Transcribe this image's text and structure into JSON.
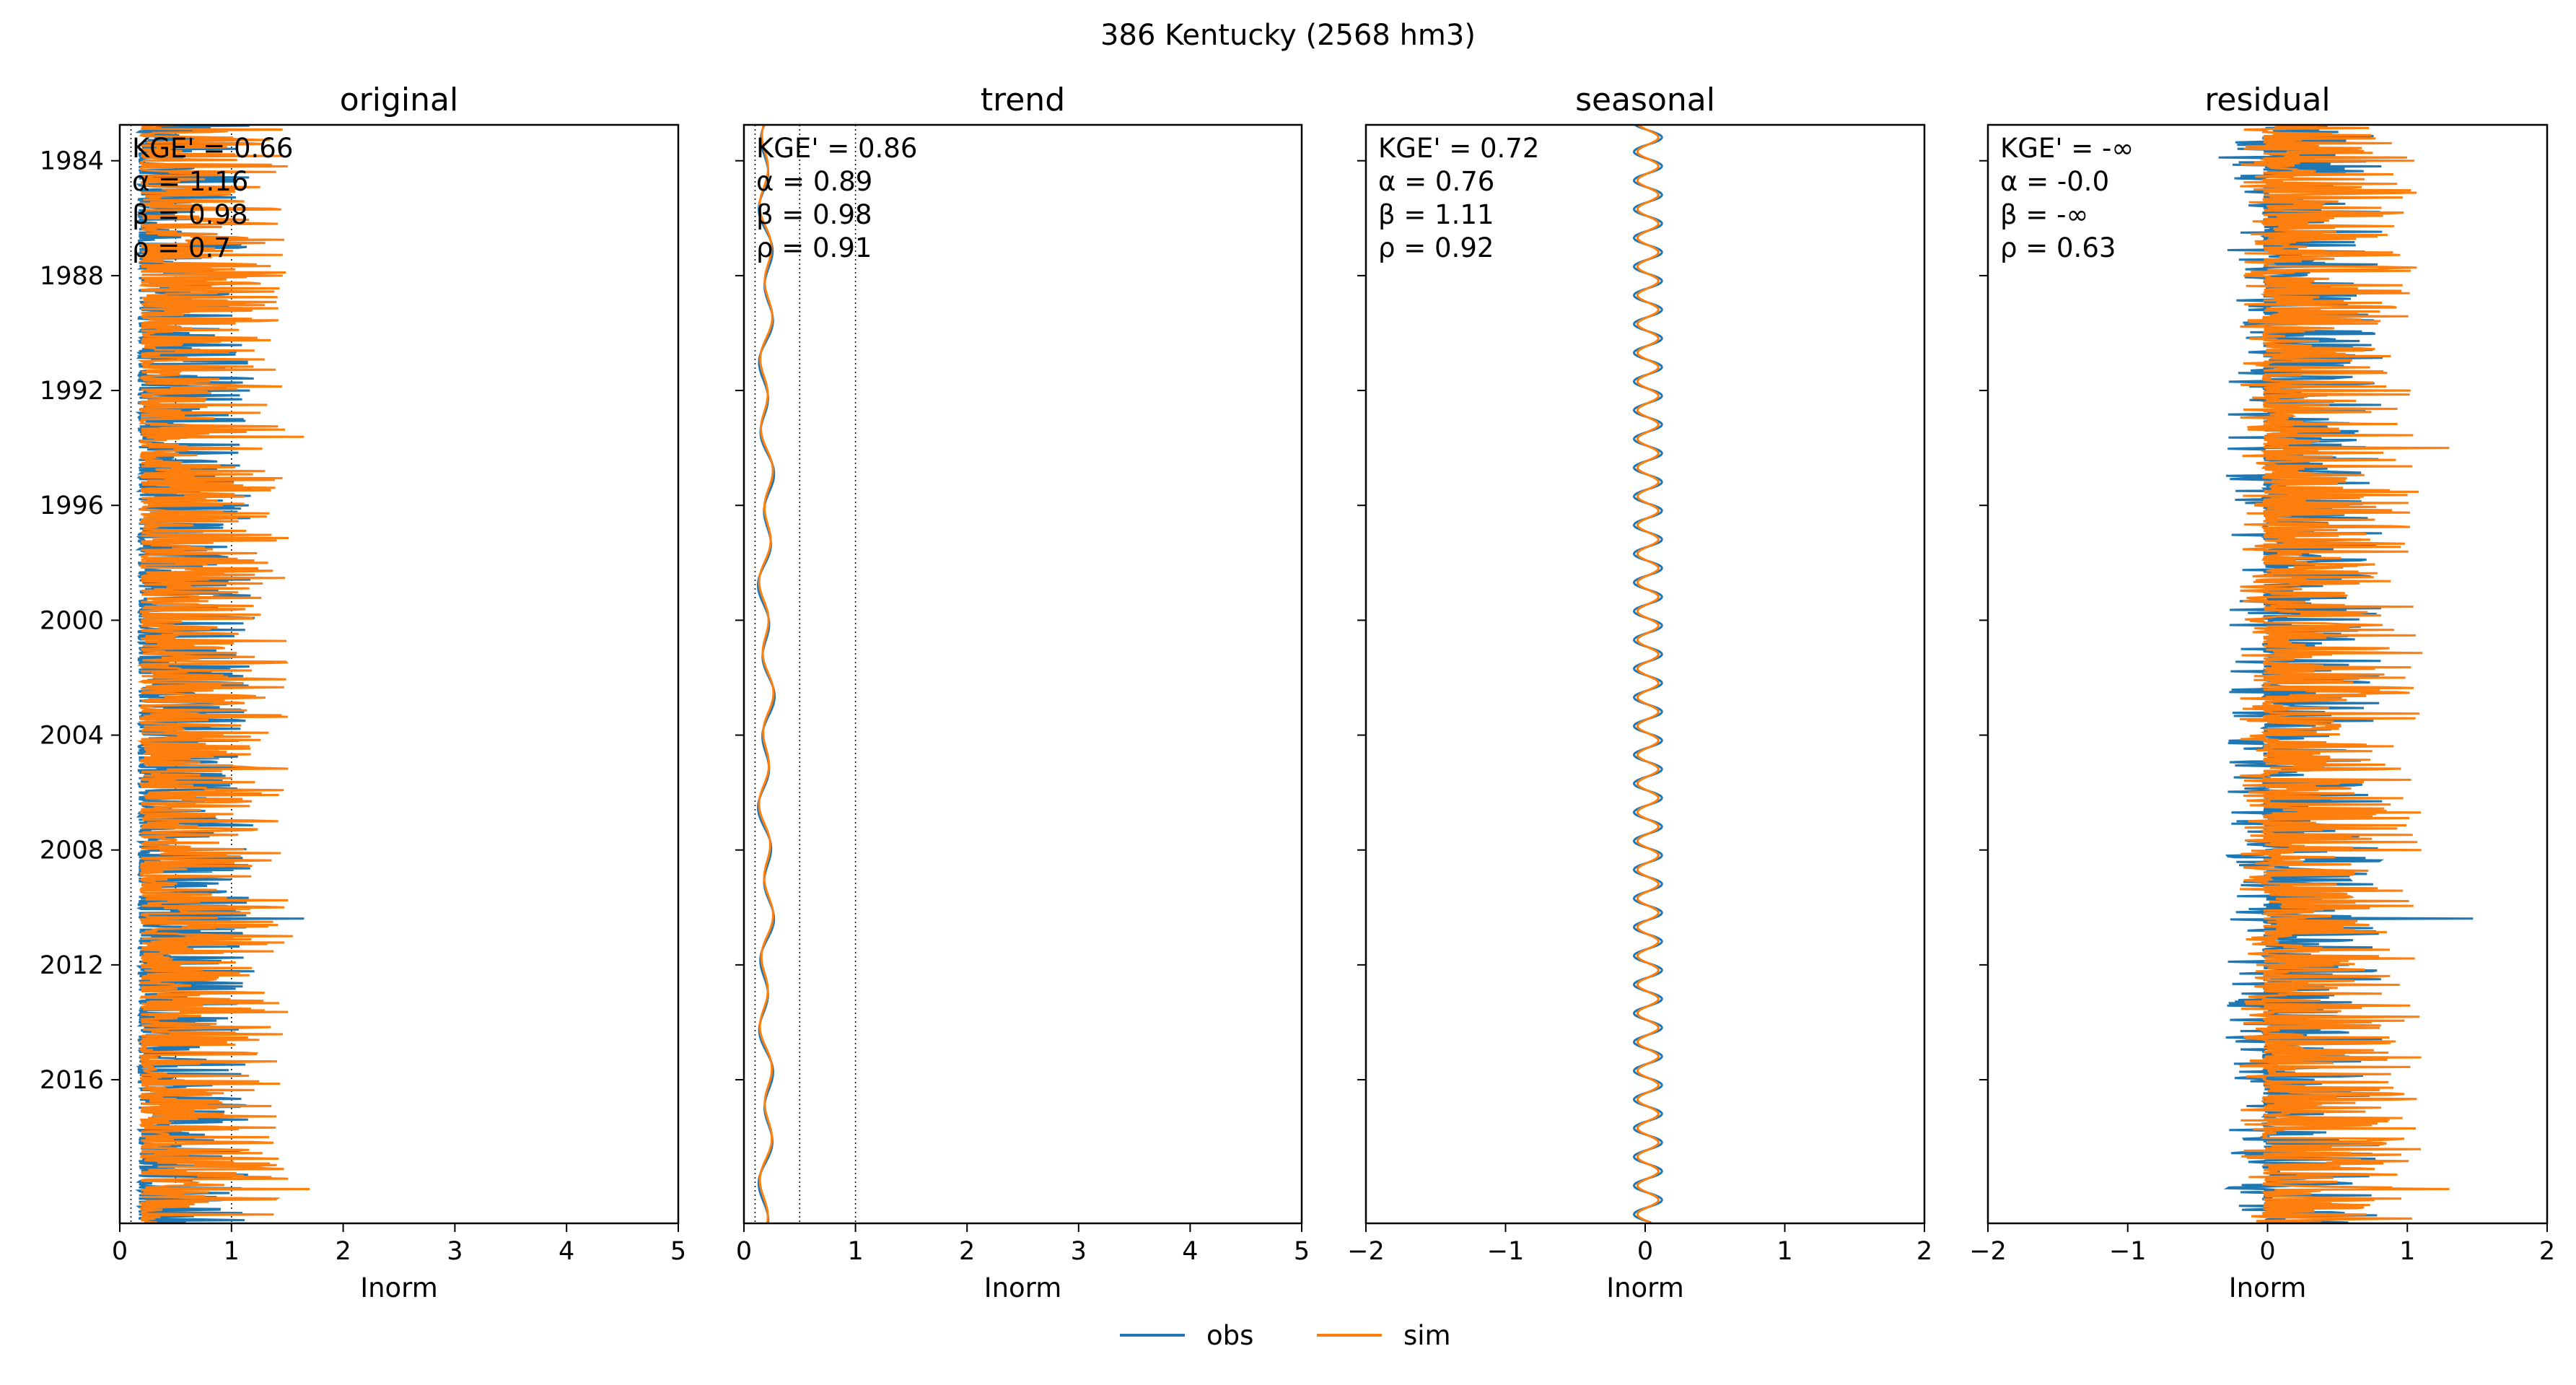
{
  "figure": {
    "suptitle": "386  Kentucky (2568 hm3)",
    "legend": [
      {
        "label": "obs",
        "color": "#1f77b4"
      },
      {
        "label": "sim",
        "color": "#ff7f0e"
      }
    ]
  },
  "chart_data": [
    {
      "type": "line",
      "orientation": "vertical-time",
      "title": "original",
      "xlabel": "Inorm",
      "ylabel": "",
      "xlim": [
        0,
        5
      ],
      "xticks": [
        "0",
        "1",
        "2",
        "3",
        "4",
        "5"
      ],
      "ylim": [
        "1982-10",
        "2021-01"
      ],
      "yticks": [
        "1984",
        "1988",
        "1992",
        "1996",
        "2000",
        "2004",
        "2008",
        "2012",
        "2016"
      ],
      "reference_lines_x": [
        0.1,
        0.5,
        1.0
      ],
      "stats": [
        "KGE' = 0.66",
        "α = 1.16",
        "β = 0.98",
        "ρ = 0.7"
      ],
      "series": [
        {
          "name": "obs",
          "color": "#1f77b4",
          "baseline": 0.2,
          "spike_scale": 0.55,
          "seasonal_amp": 0,
          "peaks": [
            {
              "year": 2010.4,
              "value": 1.65
            }
          ]
        },
        {
          "name": "sim",
          "color": "#ff7f0e",
          "baseline": 0.22,
          "spike_scale": 0.7,
          "seasonal_amp": 0,
          "peaks": [
            {
              "year": 1984.4,
              "value": 1.4
            },
            {
              "year": 1986.7,
              "value": 1.15
            },
            {
              "year": 1993.6,
              "value": 1.65
            },
            {
              "year": 2003.3,
              "value": 1.45
            },
            {
              "year": 2011.0,
              "value": 1.55
            },
            {
              "year": 2019.8,
              "value": 1.7
            }
          ]
        }
      ]
    },
    {
      "type": "line",
      "orientation": "vertical-time",
      "title": "trend",
      "xlabel": "Inorm",
      "ylabel": "",
      "xlim": [
        0,
        5
      ],
      "xticks": [
        "0",
        "1",
        "2",
        "3",
        "4",
        "5"
      ],
      "ylim": [
        "1982-10",
        "2021-01"
      ],
      "yticks": [
        "1984",
        "1988",
        "1992",
        "1996",
        "2000",
        "2004",
        "2008",
        "2012",
        "2016"
      ],
      "reference_lines_x": [
        0.1,
        0.5,
        1.0
      ],
      "stats": [
        "KGE' = 0.86",
        "α = 0.89",
        "β = 0.98",
        "ρ = 0.91"
      ],
      "series": [
        {
          "name": "obs",
          "color": "#1f77b4",
          "baseline": 0.2,
          "spike_scale": 0,
          "seasonal_amp": 0,
          "smooth_amp": 0.075,
          "peaks": []
        },
        {
          "name": "sim",
          "color": "#ff7f0e",
          "baseline": 0.2,
          "spike_scale": 0,
          "seasonal_amp": 0,
          "smooth_amp": 0.065,
          "peaks": []
        }
      ]
    },
    {
      "type": "line",
      "orientation": "vertical-time",
      "title": "seasonal",
      "xlabel": "Inorm",
      "ylabel": "",
      "xlim": [
        -2,
        2
      ],
      "xticks": [
        "−2",
        "−1",
        "0",
        "1",
        "2"
      ],
      "ylim": [
        "1982-10",
        "2021-01"
      ],
      "yticks": [
        "1984",
        "1988",
        "1992",
        "1996",
        "2000",
        "2004",
        "2008",
        "2012",
        "2016"
      ],
      "reference_lines_x": [],
      "stats": [
        "KGE' = 0.72",
        "α = 0.76",
        "β = 1.11",
        "ρ = 0.92"
      ],
      "series": [
        {
          "name": "obs",
          "color": "#1f77b4",
          "baseline": 0.02,
          "spike_scale": 0,
          "seasonal_amp": 0.1,
          "peaks": []
        },
        {
          "name": "sim",
          "color": "#ff7f0e",
          "baseline": 0.02,
          "spike_scale": 0,
          "seasonal_amp": 0.075,
          "peaks": []
        }
      ]
    },
    {
      "type": "line",
      "orientation": "vertical-time",
      "title": "residual",
      "xlabel": "Inorm",
      "ylabel": "",
      "xlim": [
        -2,
        2
      ],
      "xticks": [
        "−2",
        "−1",
        "0",
        "1",
        "2"
      ],
      "ylim": [
        "1982-10",
        "2021-01"
      ],
      "yticks": [
        "1984",
        "1988",
        "1992",
        "1996",
        "2000",
        "2004",
        "2008",
        "2012",
        "2016"
      ],
      "reference_lines_x": [],
      "stats": [
        "KGE' = -∞",
        "α = -0.0",
        "β = -∞",
        "ρ = 0.63"
      ],
      "series": [
        {
          "name": "obs",
          "color": "#1f77b4",
          "baseline": 0.0,
          "spike_scale": 0.45,
          "seasonal_amp": 0,
          "negative_floor": -0.3,
          "peaks": [
            {
              "year": 2010.4,
              "value": 1.47
            },
            {
              "year": 1983.9,
              "value": -0.35
            }
          ]
        },
        {
          "name": "sim",
          "color": "#ff7f0e",
          "baseline": 0.0,
          "spike_scale": 0.6,
          "seasonal_amp": 0,
          "negative_floor": -0.2,
          "peaks": [
            {
              "year": 1984.0,
              "value": 1.05
            },
            {
              "year": 1994.0,
              "value": 1.3
            },
            {
              "year": 2008.0,
              "value": 1.1
            },
            {
              "year": 2019.8,
              "value": 1.3
            }
          ]
        }
      ]
    }
  ]
}
